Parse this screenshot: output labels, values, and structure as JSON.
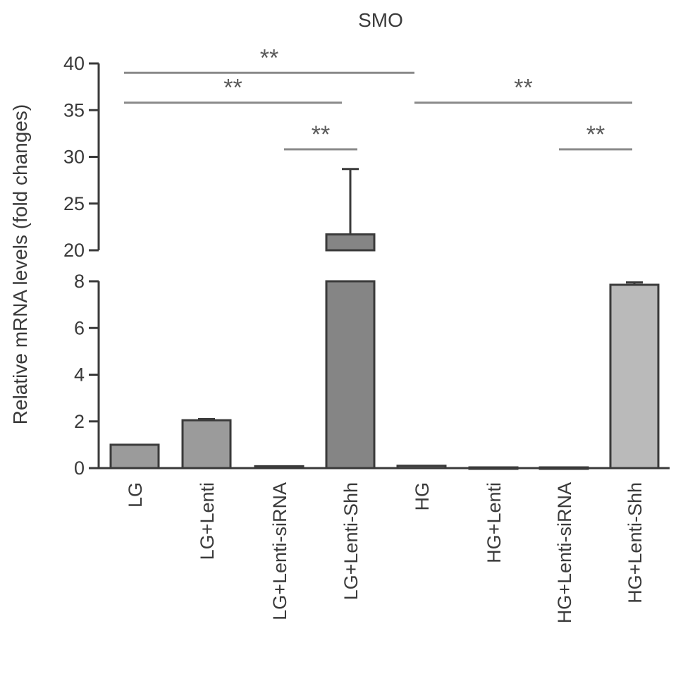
{
  "chart_data": {
    "type": "bar",
    "title": "SMO",
    "ylabel": "Relative mRNA levels (fold changes)",
    "xlabel": "",
    "axis_break": {
      "lower_range": [
        0,
        8
      ],
      "upper_range": [
        20,
        40
      ]
    },
    "lower_ticks": [
      "0",
      "2",
      "4",
      "6",
      "8"
    ],
    "upper_ticks": [
      "20",
      "25",
      "30",
      "35",
      "40"
    ],
    "categories": [
      "LG",
      "LG+Lenti",
      "LG+Lenti-siRNA",
      "LG+Lenti-Shh",
      "HG",
      "HG+Lenti",
      "HG+Lenti-siRNA",
      "HG+Lenti-Shh"
    ],
    "values": [
      1.0,
      2.05,
      0.08,
      21.7,
      0.1,
      0.03,
      0.03,
      7.85
    ],
    "errors": [
      0,
      0.05,
      0,
      7.0,
      0,
      0,
      0,
      0.1
    ],
    "bar_colors": [
      "#9b9b9b",
      "#9b9b9b",
      "#9b9b9b",
      "#858585",
      "#a9a9a9",
      "#a9a9a9",
      "#a9a9a9",
      "#bababa"
    ],
    "significance": [
      {
        "from": 0,
        "to": 4,
        "level": 39.0,
        "label": "**"
      },
      {
        "from": 0,
        "to": 3,
        "level": 35.8,
        "label": "**"
      },
      {
        "from": 2,
        "to": 3,
        "level": 30.8,
        "label": "**"
      },
      {
        "from": 4,
        "to": 7,
        "level": 35.8,
        "label": "**"
      },
      {
        "from": 6,
        "to": 7,
        "level": 30.8,
        "label": "**"
      }
    ]
  }
}
